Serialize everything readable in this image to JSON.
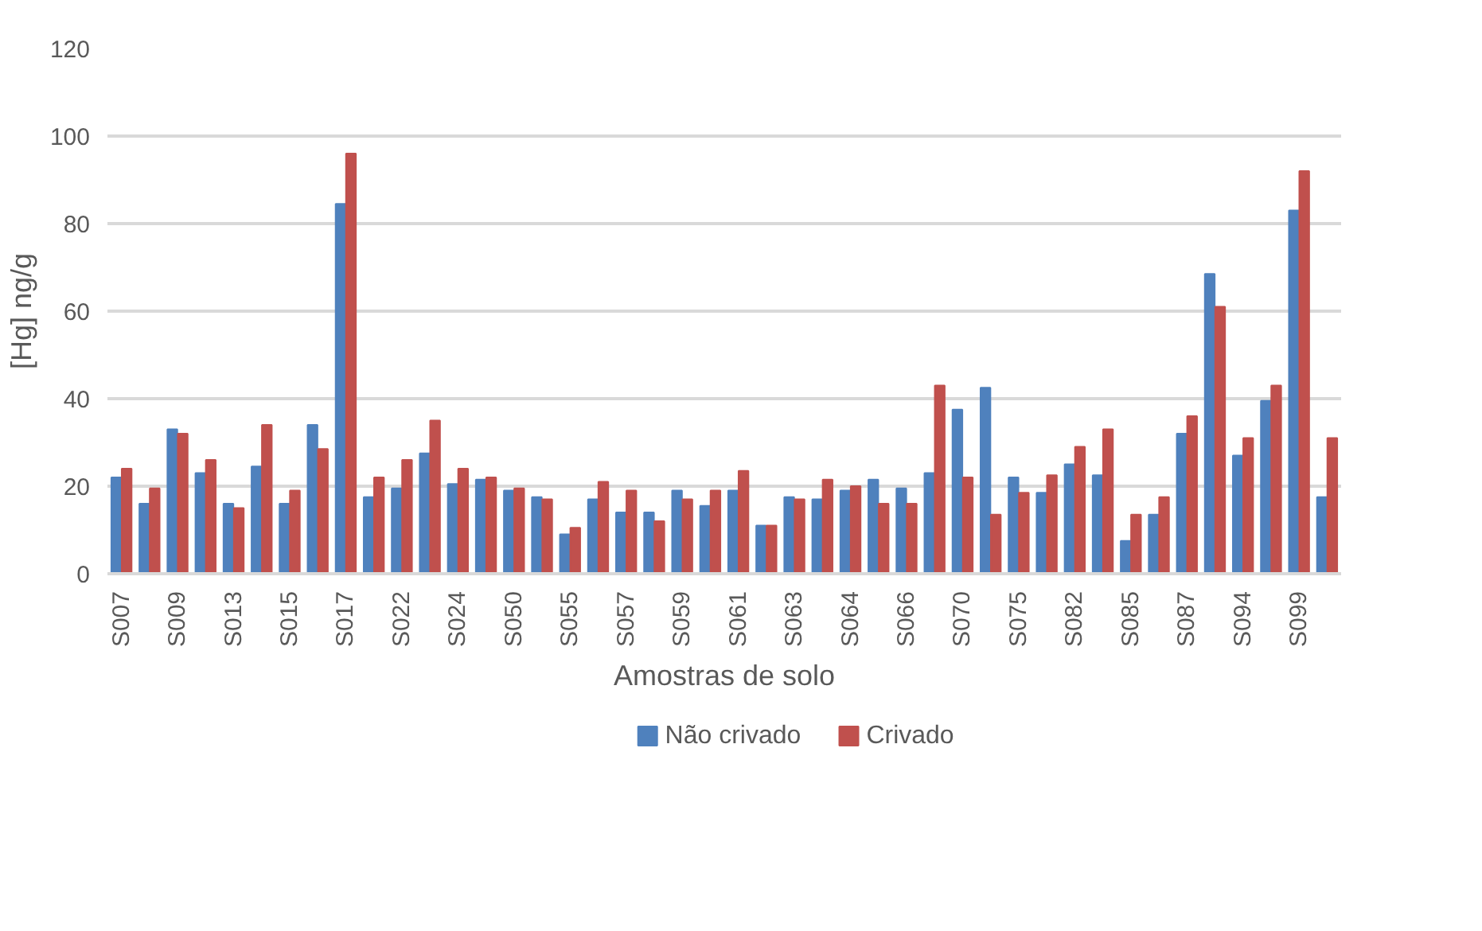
{
  "chart_data": {
    "type": "bar",
    "xlabel": "Amostras de solo",
    "ylabel": "[Hg] ng/g",
    "categories": [
      "S007",
      null,
      "S009",
      null,
      "S013",
      null,
      "S015",
      null,
      "S017",
      null,
      "S022",
      null,
      "S024",
      null,
      "S050",
      null,
      "S055",
      null,
      "S057",
      null,
      "S059",
      null,
      "S061",
      null,
      "S063",
      null,
      "S064",
      null,
      "S066",
      null,
      "S070",
      null,
      "S075",
      null,
      "S082",
      null,
      "S085",
      null,
      "S087",
      null,
      "S094",
      null,
      "S099",
      null
    ],
    "series": [
      {
        "name": "Não crivado",
        "color": "#4f81bd",
        "values": [
          22,
          16,
          33,
          23,
          16,
          24.5,
          16,
          34,
          84.5,
          17.5,
          19.5,
          27.5,
          20.5,
          21.5,
          19,
          17.5,
          9,
          17,
          14,
          14,
          19,
          15.5,
          19,
          11,
          17.5,
          17,
          19,
          21.5,
          19.5,
          23,
          37.5,
          42.5,
          22,
          18.5,
          25,
          22.5,
          7.5,
          13.5,
          32,
          68.5,
          27,
          39.5,
          83,
          17.5
        ]
      },
      {
        "name": "Crivado",
        "color": "#c0504d",
        "values": [
          24,
          19.5,
          32,
          26,
          15,
          34,
          19,
          28.5,
          96,
          22,
          26,
          35,
          24,
          22,
          19.5,
          17,
          10.5,
          21,
          19,
          12,
          17,
          19,
          23.5,
          11,
          17,
          21.5,
          20,
          16,
          16,
          43,
          22,
          13.5,
          18.5,
          22.5,
          29,
          33,
          13.5,
          17.5,
          36,
          61,
          31,
          43,
          92,
          31
        ]
      }
    ],
    "ylim": [
      0,
      120
    ],
    "yticks": [
      0,
      20,
      40,
      60,
      80,
      100,
      120
    ],
    "grid": "y",
    "legend": "bottom"
  }
}
